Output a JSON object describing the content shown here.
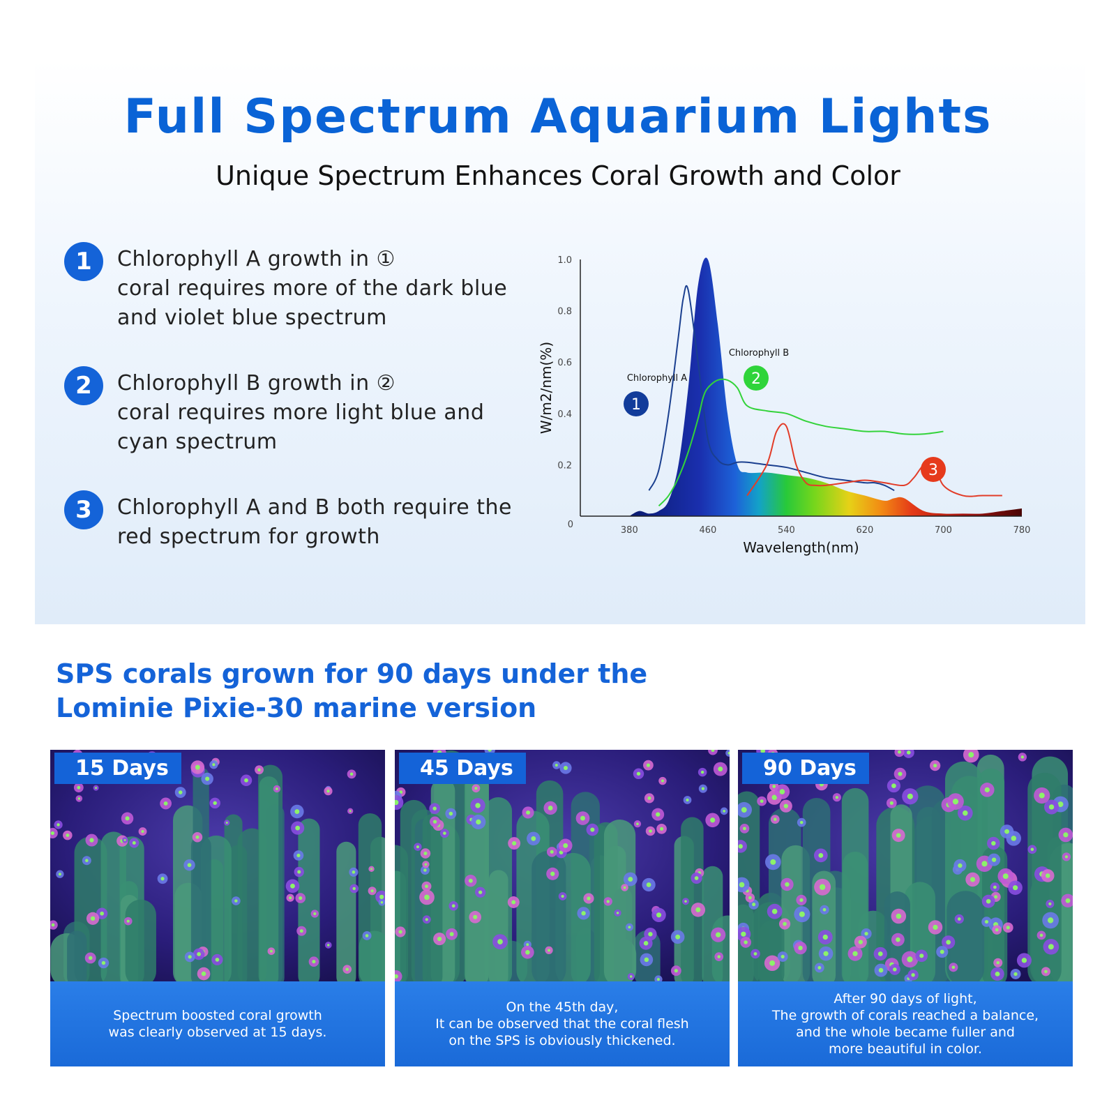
{
  "header": {
    "title": "Full Spectrum Aquarium Lights",
    "subtitle": "Unique Spectrum Enhances Coral Growth and Color"
  },
  "points": [
    {
      "number": "1",
      "lines": [
        "Chlorophyll A growth in ①",
        "coral requires more of the dark blue",
        "and violet blue spectrum"
      ]
    },
    {
      "number": "2",
      "lines": [
        "Chlorophyll B growth in ②",
        "coral requires more light blue and",
        "cyan spectrum"
      ]
    },
    {
      "number": "3",
      "lines": [
        "Chlorophyll A and B both require the",
        "red spectrum for growth"
      ]
    }
  ],
  "chart_data": {
    "type": "line",
    "xlabel": "Wavelength(nm)",
    "ylabel": "W/m2/nm(%)",
    "x_ticks": [
      "380",
      "460",
      "540",
      "620",
      "700",
      "780"
    ],
    "y_ticks": [
      "0",
      "0.2",
      "0.4",
      "0.6",
      "0.8",
      "1.0"
    ],
    "xlim": [
      330,
      780
    ],
    "ylim": [
      0,
      1.0
    ],
    "series": [
      {
        "name": "Chlorophyll A",
        "marker": "1",
        "color": "#1a3f8f",
        "x": [
          400,
          410,
          420,
          430,
          435,
          440,
          450,
          460,
          470,
          480,
          490,
          500,
          520,
          540,
          560,
          580,
          600,
          620,
          630,
          640,
          650
        ],
        "y": [
          0.1,
          0.18,
          0.4,
          0.7,
          0.85,
          0.88,
          0.6,
          0.3,
          0.22,
          0.2,
          0.21,
          0.21,
          0.2,
          0.19,
          0.17,
          0.15,
          0.14,
          0.13,
          0.13,
          0.12,
          0.1
        ]
      },
      {
        "name": "Chlorophyll B",
        "marker": "2",
        "color": "#33d33a",
        "x": [
          410,
          420,
          430,
          440,
          450,
          455,
          460,
          470,
          480,
          490,
          500,
          520,
          540,
          560,
          580,
          600,
          620,
          640,
          660,
          680,
          700
        ],
        "y": [
          0.04,
          0.08,
          0.15,
          0.25,
          0.38,
          0.46,
          0.5,
          0.53,
          0.53,
          0.5,
          0.43,
          0.41,
          0.4,
          0.37,
          0.35,
          0.34,
          0.33,
          0.33,
          0.32,
          0.32,
          0.33
        ]
      },
      {
        "name": "",
        "marker": "3",
        "color": "#e23c28",
        "x": [
          500,
          520,
          530,
          540,
          550,
          560,
          570,
          580,
          600,
          620,
          640,
          660,
          670,
          680,
          690,
          700,
          720,
          740,
          760
        ],
        "y": [
          0.08,
          0.2,
          0.33,
          0.35,
          0.2,
          0.13,
          0.12,
          0.12,
          0.13,
          0.14,
          0.13,
          0.12,
          0.15,
          0.2,
          0.21,
          0.12,
          0.08,
          0.08,
          0.08
        ]
      },
      {
        "name": "",
        "marker": "",
        "color": "#1f5fd8",
        "fill": "spectrum",
        "x": [
          380,
          390,
          400,
          410,
          420,
          430,
          440,
          450,
          460,
          470,
          480,
          490,
          500,
          520,
          540,
          560,
          580,
          600,
          620,
          640,
          650,
          660,
          680,
          700,
          720,
          740,
          760,
          780
        ],
        "y": [
          0,
          0.02,
          0.01,
          0.02,
          0.06,
          0.2,
          0.5,
          0.9,
          1.0,
          0.75,
          0.4,
          0.2,
          0.17,
          0.17,
          0.16,
          0.15,
          0.13,
          0.1,
          0.08,
          0.06,
          0.07,
          0.07,
          0.02,
          0.01,
          0.01,
          0.01,
          0.02,
          0.03
        ]
      }
    ],
    "annotations": [
      "Chlorophyll A",
      "Chlorophyll B"
    ],
    "grid": false,
    "legend": "none"
  },
  "section": {
    "title_lines": [
      "SPS corals grown for 90 days under the",
      "Lominie Pixie-30 marine version"
    ]
  },
  "cards": [
    {
      "badge": "15 Days",
      "caption_lines": [
        "Spectrum boosted coral growth",
        "was clearly observed at 15 days."
      ]
    },
    {
      "badge": "45 Days",
      "caption_lines": [
        "On the 45th day,",
        "It can be observed that the coral flesh",
        "on the SPS is obviously thickened."
      ]
    },
    {
      "badge": "90 Days",
      "caption_lines": [
        "After 90 days of light,",
        "The growth of corals reached a balance,",
        "and the whole became fuller and",
        "more beautiful in color."
      ]
    }
  ],
  "colors": {
    "accent": "#1463d8",
    "title": "#0a63d6"
  }
}
